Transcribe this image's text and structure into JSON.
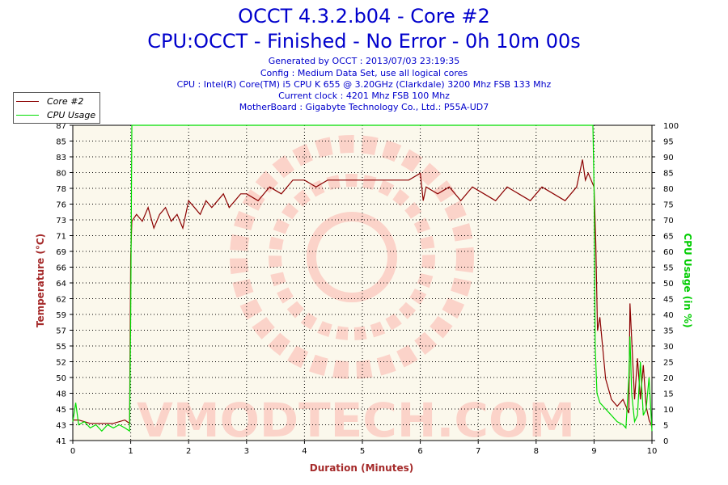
{
  "header": {
    "title": "OCCT 4.3.2.b04 - Core #2",
    "subtitle": "CPU:OCCT - Finished - No Error - 0h 10m 00s",
    "info": [
      "Generated by OCCT : 2013/07/03 23:19:35",
      "Config : Medium Data Set, use all logical cores",
      "CPU : Intel(R) Core(TM) i5 CPU K 655 @ 3.20GHz (Clarkdale) 3200 Mhz FSB 133 Mhz",
      "Current clock : 4201 Mhz FSB 100 Mhz",
      "MotherBoard : Gigabyte Technology Co., Ltd.: P55A-UD7"
    ]
  },
  "legend": {
    "core_label": "Core #2",
    "usage_label": "CPU Usage"
  },
  "watermark": "VMODTECH.COM",
  "colors": {
    "temperature": "#8b0000",
    "usage": "#00dd00",
    "title": "#0000cc",
    "axis_temp": "#a52a2a",
    "axis_usage": "#00cc00",
    "plot_bg": "#fbf8ec",
    "grid": "#000000"
  },
  "chart_data": {
    "type": "line",
    "xlabel": "Duration (Minutes)",
    "ylabel_left": "Temperature (°C)",
    "ylabel_right": "CPU Usage (in %)",
    "x_ticks": [
      "0",
      "1",
      "2",
      "3",
      "4",
      "5",
      "6",
      "7",
      "8",
      "9",
      "10"
    ],
    "xlim": [
      0,
      10
    ],
    "ylim_left": [
      41,
      87
    ],
    "y_ticks_left": [
      "41",
      "43",
      "45",
      "48",
      "50",
      "52",
      "55",
      "57",
      "59",
      "62",
      "64",
      "66",
      "69",
      "71",
      "73",
      "76",
      "78",
      "80",
      "83",
      "85",
      "87"
    ],
    "ylim_right": [
      0,
      100
    ],
    "y_ticks_right": [
      "0",
      "5",
      "10",
      "15",
      "20",
      "25",
      "30",
      "35",
      "40",
      "45",
      "50",
      "55",
      "60",
      "65",
      "70",
      "75",
      "80",
      "85",
      "90",
      "95",
      "100"
    ],
    "grid": true,
    "legend_position": "top-left",
    "series": [
      {
        "name": "Core #2",
        "axis": "left",
        "x": [
          0,
          0.1,
          0.3,
          0.5,
          0.7,
          0.9,
          0.98,
          1.0,
          1.02,
          1.1,
          1.2,
          1.3,
          1.4,
          1.5,
          1.6,
          1.7,
          1.8,
          1.9,
          2.0,
          2.1,
          2.2,
          2.3,
          2.4,
          2.5,
          2.6,
          2.7,
          2.8,
          2.9,
          3.0,
          3.2,
          3.4,
          3.6,
          3.8,
          4.0,
          4.2,
          4.4,
          4.6,
          4.8,
          5.0,
          5.2,
          5.4,
          5.6,
          5.8,
          6.0,
          6.05,
          6.1,
          6.3,
          6.5,
          6.7,
          6.9,
          7.1,
          7.3,
          7.5,
          7.7,
          7.9,
          8.1,
          8.3,
          8.5,
          8.7,
          8.8,
          8.85,
          8.9,
          8.95,
          9.0,
          9.03,
          9.06,
          9.1,
          9.2,
          9.3,
          9.4,
          9.5,
          9.6,
          9.62,
          9.7,
          9.75,
          9.8,
          9.85,
          9.9,
          9.95,
          10.0
        ],
        "values": [
          44,
          44,
          43.5,
          43.5,
          43.5,
          44,
          43.5,
          68,
          73,
          74,
          73,
          75,
          72,
          74,
          75,
          73,
          74,
          72,
          76,
          75,
          74,
          76,
          75,
          76,
          77,
          75,
          76,
          77,
          77,
          76,
          78,
          77,
          79,
          79,
          78,
          79,
          79,
          79,
          79,
          79,
          79,
          79,
          79,
          80,
          76,
          78,
          77,
          78,
          76,
          78,
          77,
          76,
          78,
          77,
          76,
          78,
          77,
          76,
          78,
          82,
          79,
          80,
          79,
          78,
          70,
          57,
          59,
          50,
          47,
          46,
          47,
          45,
          61,
          47,
          53,
          47,
          52,
          46,
          44,
          43
        ]
      },
      {
        "name": "CPU Usage",
        "axis": "right",
        "x": [
          0,
          0.05,
          0.1,
          0.2,
          0.3,
          0.4,
          0.5,
          0.6,
          0.7,
          0.8,
          0.9,
          0.98,
          1.0,
          1.02,
          2.0,
          3.0,
          4.0,
          5.0,
          6.0,
          7.0,
          8.0,
          8.5,
          8.98,
          9.0,
          9.02,
          9.05,
          9.1,
          9.2,
          9.3,
          9.4,
          9.5,
          9.55,
          9.6,
          9.62,
          9.65,
          9.7,
          9.75,
          9.8,
          9.85,
          9.9,
          9.95,
          10.0
        ],
        "values": [
          6,
          12,
          5,
          6,
          4,
          5,
          3,
          5,
          4,
          5,
          4,
          3,
          40,
          100,
          100,
          100,
          100,
          100,
          100,
          100,
          100,
          100,
          100,
          80,
          30,
          15,
          12,
          10,
          8,
          6,
          5,
          4,
          20,
          33,
          15,
          6,
          8,
          25,
          8,
          10,
          20,
          3
        ]
      }
    ]
  }
}
